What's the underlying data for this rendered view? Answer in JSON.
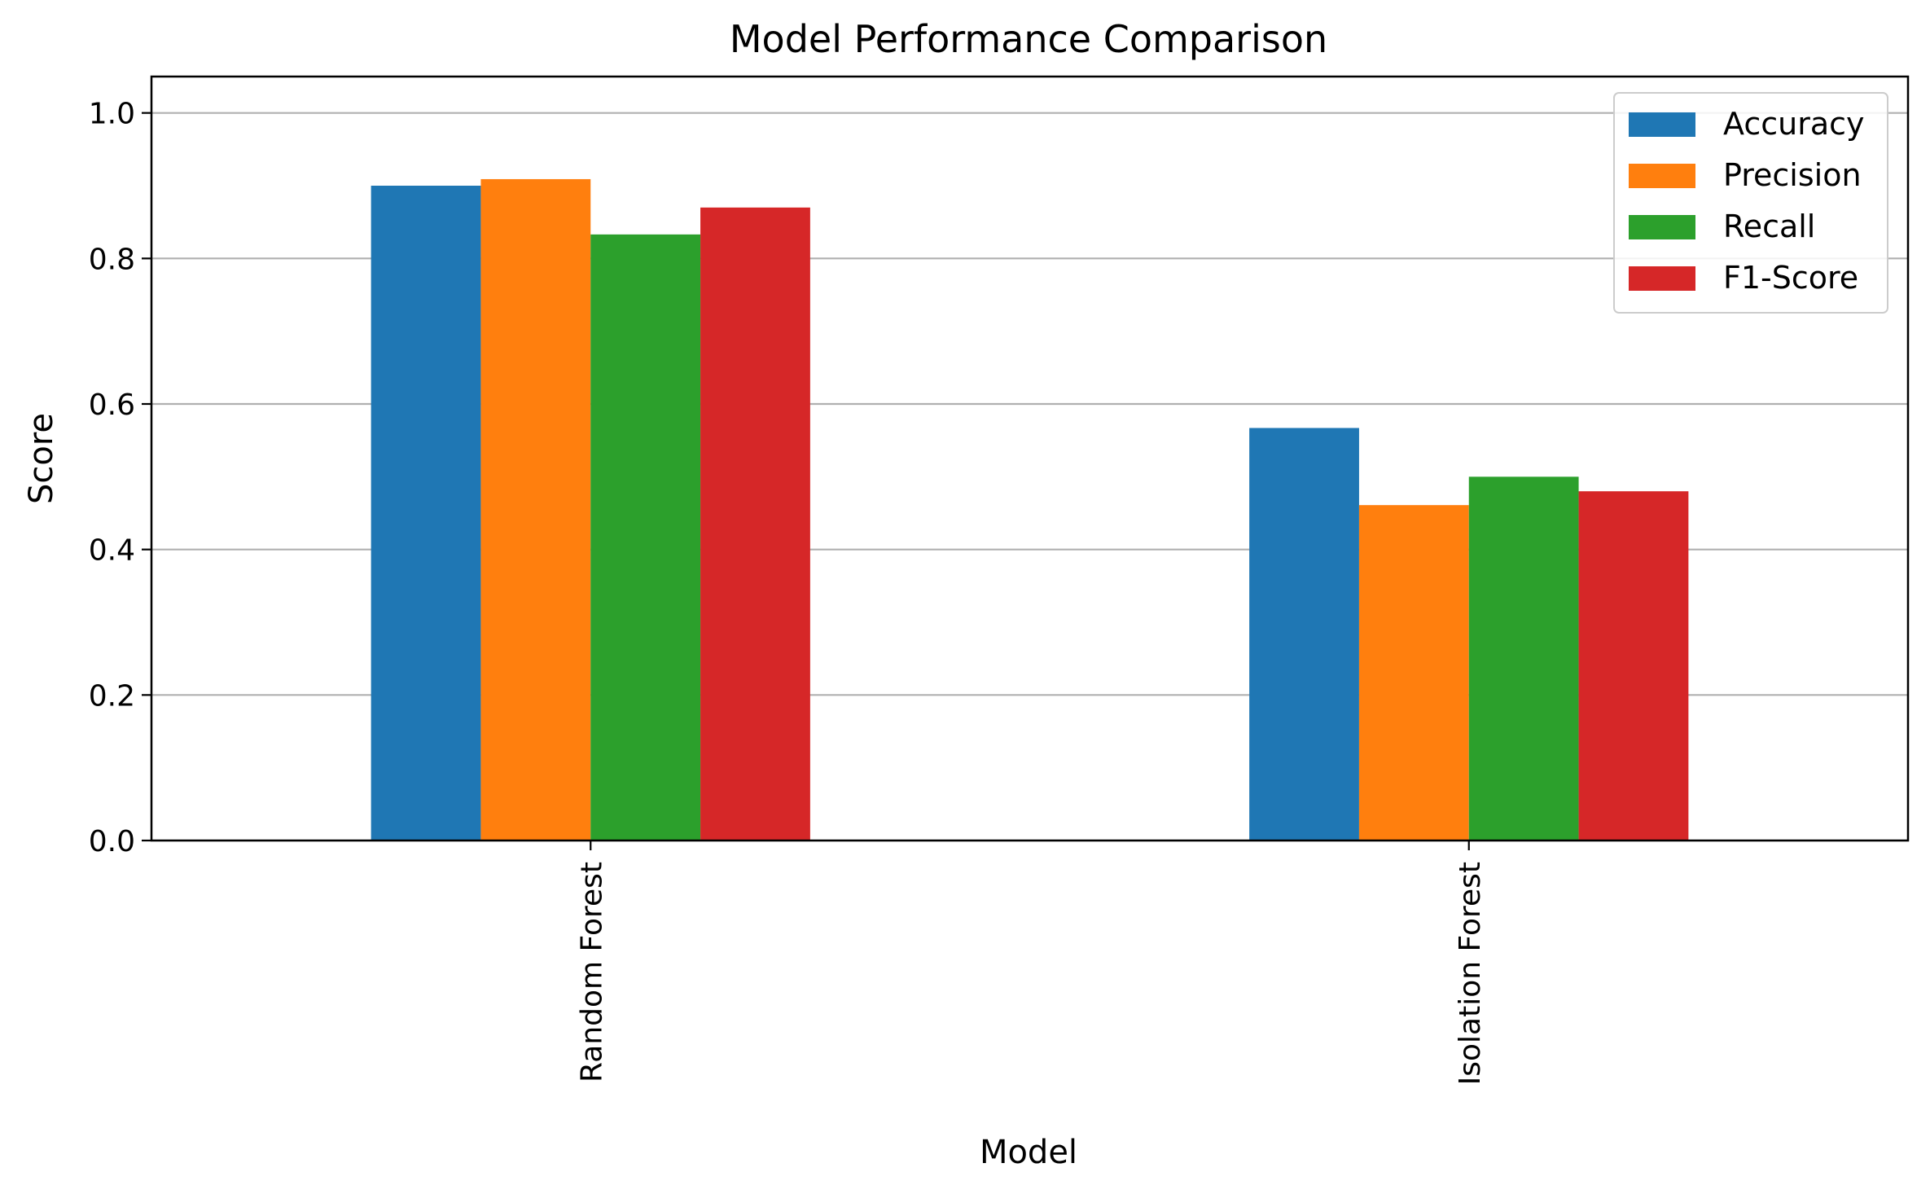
{
  "chart_data": {
    "type": "bar",
    "title": "Model Performance Comparison",
    "xlabel": "Model",
    "ylabel": "Score",
    "categories": [
      "Random Forest",
      "Isolation Forest"
    ],
    "series": [
      {
        "name": "Accuracy",
        "color": "#1f77b4",
        "values": [
          0.9,
          0.567
        ]
      },
      {
        "name": "Precision",
        "color": "#ff7f0e",
        "values": [
          0.909,
          0.461
        ]
      },
      {
        "name": "Recall",
        "color": "#2ca02c",
        "values": [
          0.833,
          0.5
        ]
      },
      {
        "name": "F1-Score",
        "color": "#d62728",
        "values": [
          0.87,
          0.48
        ]
      }
    ],
    "ylim": [
      0,
      1.05
    ],
    "yticks": [
      "0.0",
      "0.2",
      "0.4",
      "0.6",
      "0.8",
      "1.0"
    ],
    "grid": "y-axis",
    "legend_position": "top-right",
    "category_label_rotation": "vertical"
  }
}
